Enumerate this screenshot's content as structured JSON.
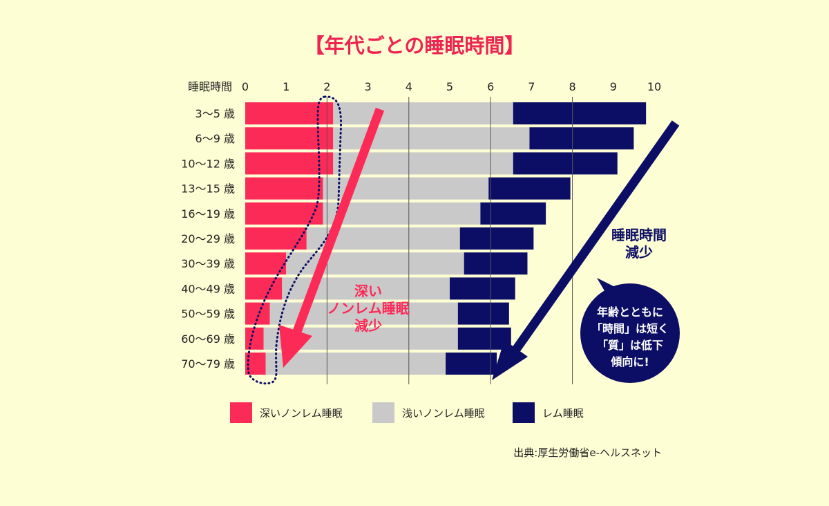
{
  "colors": {
    "background": "#fefed5",
    "deep": "#fc2a57",
    "light": "#c9c9c9",
    "rem": "#0c0e65",
    "title": "#ee2350",
    "grid": "#555555",
    "bubble": "#0c0e65"
  },
  "chart_data": {
    "type": "bar",
    "orientation": "horizontal",
    "stacked": true,
    "title": "【年代ごとの睡眠時間】",
    "xlabel": "睡眠時間",
    "xlim": [
      0,
      10
    ],
    "x_ticks": [
      "0",
      "1",
      "2",
      "3",
      "4",
      "5",
      "6",
      "7",
      "8",
      "9",
      "10"
    ],
    "categories": [
      "3〜5 歳",
      "6〜9 歳",
      "10〜12 歳",
      "13〜15 歳",
      "16〜19 歳",
      "20〜29 歳",
      "30〜39 歳",
      "40〜49 歳",
      "50〜59 歳",
      "60〜69 歳",
      "70〜79 歳"
    ],
    "series": [
      {
        "name": "深いノンレム睡眠",
        "values": [
          2.15,
          2.15,
          2.15,
          1.9,
          1.9,
          1.5,
          1.0,
          0.9,
          0.6,
          0.45,
          0.5
        ]
      },
      {
        "name": "浅いノンレム睡眠",
        "values": [
          4.4,
          4.8,
          4.4,
          4.05,
          3.85,
          3.75,
          4.35,
          4.1,
          4.6,
          4.75,
          4.4
        ]
      },
      {
        "name": "レム睡眠",
        "values": [
          3.25,
          2.55,
          2.55,
          2.0,
          1.6,
          1.8,
          1.55,
          1.6,
          1.25,
          1.3,
          1.25
        ]
      }
    ],
    "grid": "vertical",
    "legend_position": "bottom",
    "annotations": {
      "deep_arrow": [
        "深い",
        "ノンレム睡眠",
        "減少"
      ],
      "total_arrow": [
        "睡眠時間",
        "減少"
      ],
      "bubble": [
        "年齢とともに",
        "「時間」は短く",
        "「質」は低下",
        "傾向に!"
      ]
    },
    "source": "出典:厚生労働省e-ヘルスネット"
  }
}
